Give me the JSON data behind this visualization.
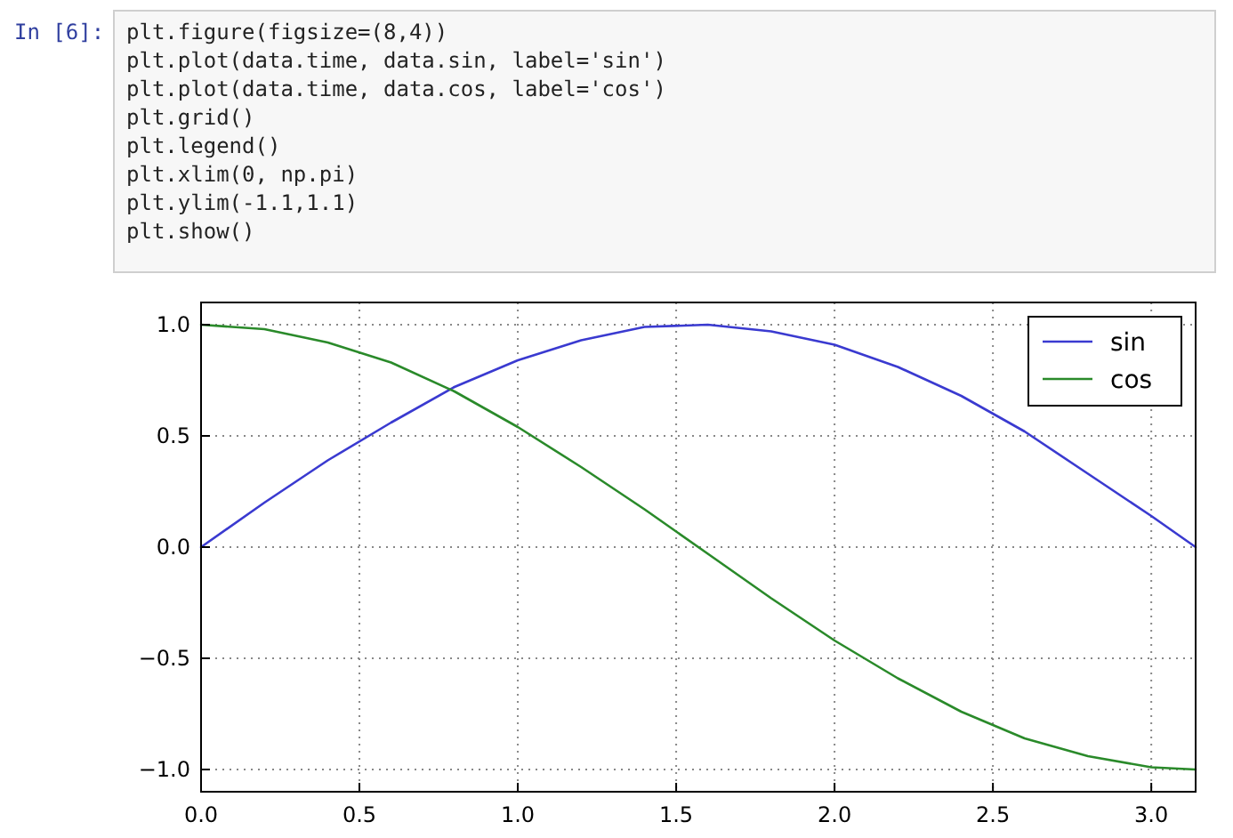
{
  "chart_data": {
    "type": "line",
    "x": [
      0,
      0.2,
      0.4,
      0.6,
      0.8,
      1.0,
      1.2,
      1.4,
      1.6,
      1.8,
      2.0,
      2.2,
      2.4,
      2.6,
      2.8,
      3.0,
      3.14
    ],
    "series": [
      {
        "name": "sin",
        "color": "#3a3ad0",
        "values": [
          0,
          0.2,
          0.39,
          0.56,
          0.72,
          0.84,
          0.93,
          0.99,
          1.0,
          0.97,
          0.91,
          0.81,
          0.68,
          0.52,
          0.33,
          0.14,
          0
        ]
      },
      {
        "name": "cos",
        "color": "#2a8a2a",
        "values": [
          1,
          0.98,
          0.92,
          0.83,
          0.7,
          0.54,
          0.36,
          0.17,
          -0.03,
          -0.23,
          -0.42,
          -0.59,
          -0.74,
          -0.86,
          -0.94,
          -0.99,
          -1
        ]
      }
    ],
    "xlim": [
      0,
      3.14
    ],
    "ylim": [
      -1.1,
      1.1
    ],
    "xticks": [
      {
        "value": 0,
        "label": "0.0"
      },
      0.5,
      {
        "value": 1,
        "label": "1.0"
      },
      1.5,
      {
        "value": 2,
        "label": "2.0"
      },
      2.5,
      {
        "value": 3,
        "label": "3.0"
      }
    ],
    "yticks": [
      {
        "value": -1,
        "label": "−1.0"
      },
      {
        "value": -0.5,
        "label": "−0.5"
      },
      {
        "value": 0,
        "label": "0.0"
      },
      0.5,
      {
        "value": 1,
        "label": "1.0"
      }
    ],
    "grid": true,
    "legend": "top right",
    "marker": "none",
    "line_style": "solid",
    "annotations": [
      "In [6]:",
      "plt.figure(figsize=(8,4))",
      "plt.plot(data.time, data.sin, label='sin')",
      "plt.plot(data.time, data.cos, label='cos')",
      "plt.grid()",
      "plt.legend()",
      "plt.xlim(0, np.pi)",
      "plt.ylim(-1.1,1.1)",
      "plt.show()"
    ]
  }
}
